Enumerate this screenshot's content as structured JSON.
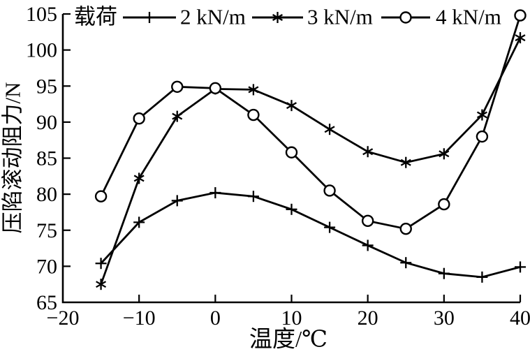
{
  "figure": {
    "background": "#ffffff",
    "foreground": "#000000"
  },
  "legend": {
    "title": "载荷",
    "items": [
      {
        "label": "2 kN/m",
        "marker": "plus"
      },
      {
        "label": "3 kN/m",
        "marker": "asterisk"
      },
      {
        "label": "4 kN/m",
        "marker": "circle"
      }
    ]
  },
  "chart_data": {
    "type": "line",
    "title": "",
    "xlabel": "温度/℃",
    "ylabel": "压陷滚动阻力/N",
    "legend_title": "载荷",
    "legend_position": "top-inside",
    "grid": false,
    "x": [
      -15,
      -10,
      -5,
      0,
      5,
      10,
      15,
      20,
      25,
      30,
      35,
      40
    ],
    "series": [
      {
        "name": "2 kN/m",
        "marker": "plus",
        "values": [
          70.4,
          76.1,
          79.1,
          80.2,
          79.7,
          77.9,
          75.4,
          72.9,
          70.5,
          69.0,
          68.5,
          69.9
        ]
      },
      {
        "name": "3 kN/m",
        "marker": "asterisk",
        "values": [
          67.5,
          82.2,
          90.8,
          94.6,
          94.5,
          92.3,
          89.0,
          85.9,
          84.4,
          85.6,
          91.0,
          101.7
        ]
      },
      {
        "name": "4 kN/m",
        "marker": "circle",
        "values": [
          79.7,
          90.5,
          94.9,
          94.7,
          91.0,
          85.8,
          80.5,
          76.3,
          75.2,
          78.6,
          88.0,
          104.8
        ]
      }
    ],
    "xlim": [
      -20,
      40
    ],
    "ylim": [
      65,
      105
    ],
    "xticks": [
      -20,
      -10,
      0,
      10,
      20,
      30,
      40
    ],
    "yticks": [
      65,
      70,
      75,
      80,
      85,
      90,
      95,
      100,
      105
    ],
    "line_color": "#000000",
    "background": "#ffffff"
  }
}
